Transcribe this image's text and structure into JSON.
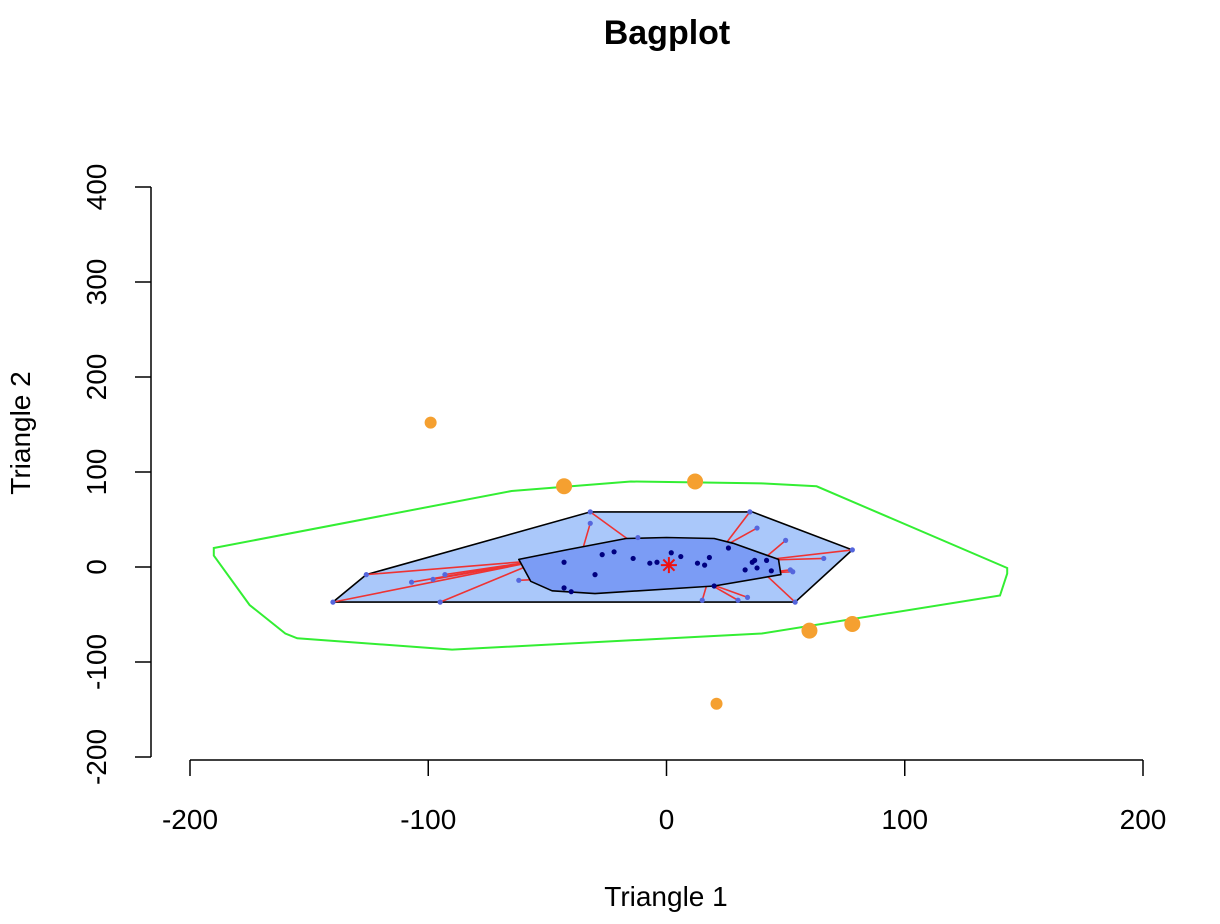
{
  "chart_data": {
    "type": "scatter",
    "title": "Bagplot",
    "xlabel": "Triangle 1",
    "ylabel": "Triangle 2",
    "xlim": [
      -200,
      200
    ],
    "ylim": [
      -200,
      400
    ],
    "xticks": [
      -200,
      -100,
      0,
      100,
      200
    ],
    "yticks": [
      -200,
      -100,
      0,
      100,
      200,
      300,
      400
    ],
    "colors": {
      "fence": "#33ee33",
      "loop_fill": "#aac8fa",
      "bag_fill": "#7b9cf5",
      "whisker": "#ee3333",
      "point_in_bag": "#000080",
      "point_in_loop": "#5566dd",
      "outlier": "#f5a030",
      "center": "#ee1111"
    },
    "fence": [
      [
        -190,
        20
      ],
      [
        -65,
        80
      ],
      [
        -15,
        90
      ],
      [
        40,
        88
      ],
      [
        63,
        85
      ],
      [
        143,
        -1
      ],
      [
        143,
        -7
      ],
      [
        140,
        -30
      ],
      [
        40,
        -70
      ],
      [
        -90,
        -87
      ],
      [
        -155,
        -75
      ],
      [
        -160,
        -70
      ],
      [
        -175,
        -40
      ],
      [
        -190,
        12
      ]
    ],
    "loop": [
      [
        -32,
        58
      ],
      [
        36,
        58
      ],
      [
        78,
        18
      ],
      [
        54,
        -37
      ],
      [
        -140,
        -37
      ],
      [
        -126,
        -8
      ]
    ],
    "bag": [
      [
        -62,
        8
      ],
      [
        -42,
        18
      ],
      [
        -17,
        30
      ],
      [
        0,
        31
      ],
      [
        20,
        30
      ],
      [
        28,
        25
      ],
      [
        47,
        8
      ],
      [
        48,
        -8
      ],
      [
        20,
        -20
      ],
      [
        -30,
        -28
      ],
      [
        -48,
        -25
      ],
      [
        -57,
        -15
      ]
    ],
    "center": [
      1,
      2
    ],
    "points_in_bag": [
      [
        -43,
        5
      ],
      [
        -30,
        -8
      ],
      [
        -27,
        13
      ],
      [
        -22,
        16
      ],
      [
        -14,
        9
      ],
      [
        -7,
        4
      ],
      [
        -4,
        5
      ],
      [
        2,
        15
      ],
      [
        6,
        11
      ],
      [
        13,
        4
      ],
      [
        16,
        2
      ],
      [
        18,
        10
      ],
      [
        26,
        20
      ],
      [
        33,
        -3
      ],
      [
        36,
        5
      ],
      [
        37,
        7
      ],
      [
        38,
        -1
      ],
      [
        42,
        7
      ],
      [
        44,
        -4
      ],
      [
        20,
        -20
      ],
      [
        -43,
        -22
      ],
      [
        -40,
        -26
      ]
    ],
    "points_in_loop": [
      [
        -32,
        58
      ],
      [
        -32,
        46
      ],
      [
        -12,
        31
      ],
      [
        35,
        58
      ],
      [
        38,
        41
      ],
      [
        50,
        28
      ],
      [
        78,
        18
      ],
      [
        66,
        9
      ],
      [
        52,
        -3
      ],
      [
        53,
        -5
      ],
      [
        54,
        -37
      ],
      [
        34,
        -32
      ],
      [
        30,
        -35
      ],
      [
        15,
        -35
      ],
      [
        -95,
        -37
      ],
      [
        -140,
        -37
      ],
      [
        -107,
        -16
      ],
      [
        -98,
        -13
      ],
      [
        -93,
        -8
      ],
      [
        -126,
        -8
      ],
      [
        -62,
        -14
      ]
    ],
    "outliers": [
      [
        -99,
        152
      ],
      [
        -43,
        85
      ],
      [
        12,
        90
      ],
      [
        78,
        -60
      ],
      [
        60,
        -67
      ],
      [
        21,
        -144
      ]
    ]
  }
}
